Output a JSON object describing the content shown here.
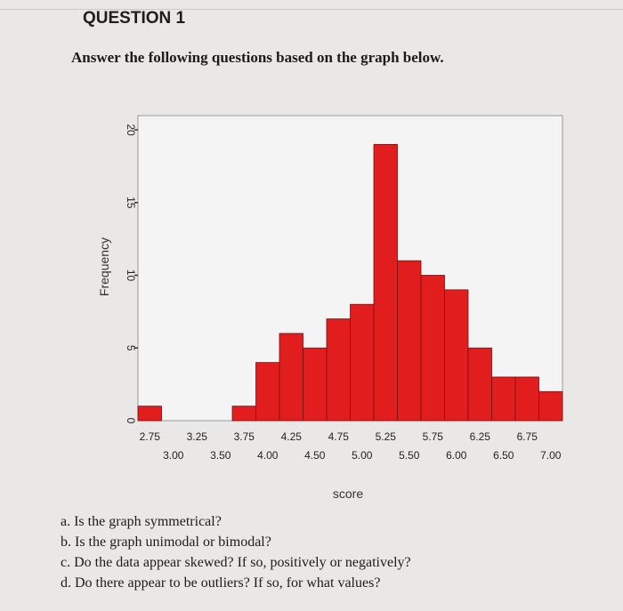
{
  "question": {
    "title": "QUESTION 1",
    "instruction": "Answer the following questions based on the graph below."
  },
  "chart_data": {
    "type": "bar",
    "xlabel": "score",
    "ylabel": "Frequency",
    "ylim": [
      0,
      20
    ],
    "yticks": [
      0,
      5,
      10,
      15,
      20
    ],
    "bin_width": 0.25,
    "xlim": [
      2.625,
      7.125
    ],
    "bin_starts": [
      2.625,
      2.875,
      3.125,
      3.375,
      3.625,
      3.875,
      4.125,
      4.375,
      4.625,
      4.875,
      5.125,
      5.375,
      5.625,
      5.875,
      6.125,
      6.375,
      6.625,
      6.875
    ],
    "values": [
      1,
      0,
      0,
      0,
      1,
      4,
      6,
      5,
      7,
      8,
      19,
      11,
      10,
      9,
      5,
      3,
      3,
      2
    ],
    "xticks_upper": [
      "2.75",
      "3.25",
      "3.75",
      "4.25",
      "4.75",
      "5.25",
      "5.75",
      "6.25",
      "6.75"
    ],
    "xticks_lower": [
      "3.00",
      "3.50",
      "4.00",
      "4.50",
      "5.00",
      "5.50",
      "6.00",
      "6.50",
      "7.00"
    ],
    "bar_color": "#e21d1d",
    "grid": false,
    "legend": "none"
  },
  "questions": [
    "a. Is the graph symmetrical?",
    "b. Is the graph unimodal or bimodal?",
    "c. Do the data appear skewed? If so, positively or negatively?",
    "d. Do there appear to be outliers? If so, for what values?"
  ]
}
